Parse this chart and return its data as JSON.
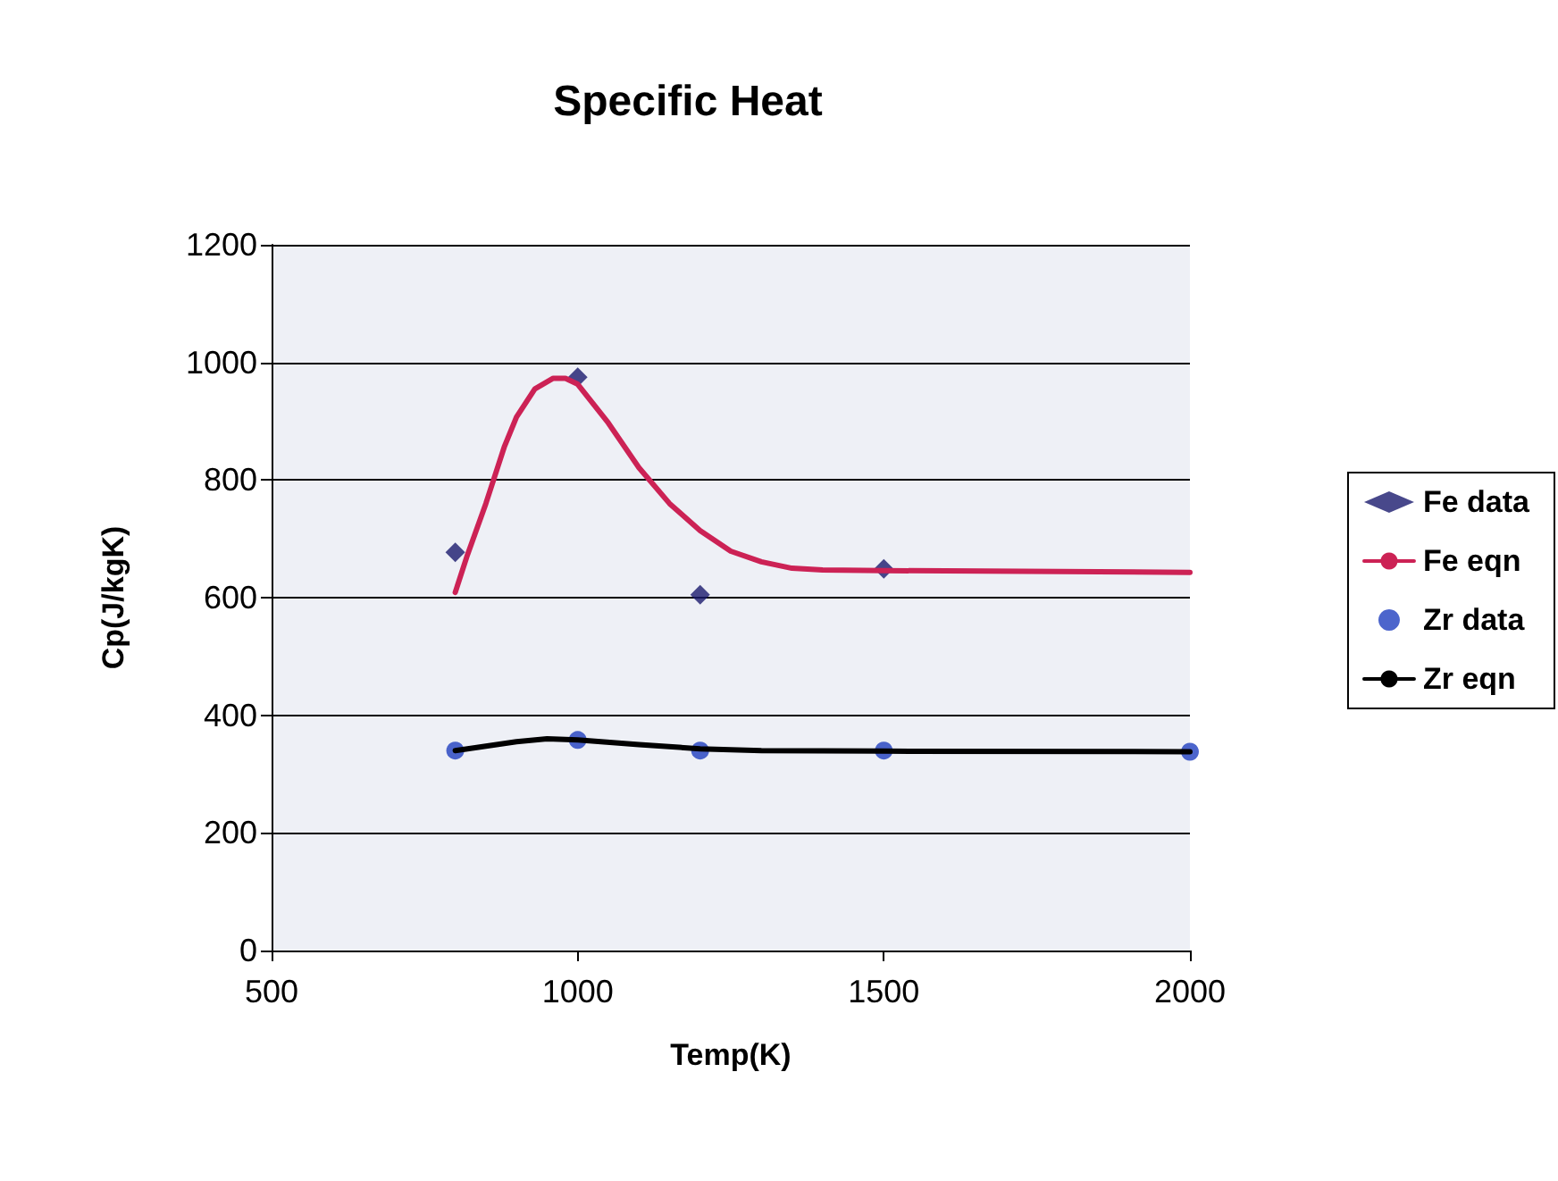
{
  "chart_data": {
    "type": "scatter",
    "title": "Specific Heat",
    "xlabel": "Temp(K)",
    "ylabel": "Cp(J/kgK)",
    "xlim": [
      500,
      2000
    ],
    "xticks": [
      500,
      1000,
      1500,
      2000
    ],
    "ylim": [
      0,
      1200
    ],
    "yticks": [
      0,
      200,
      400,
      600,
      800,
      1000,
      1200
    ],
    "grid": "y",
    "legend": "right",
    "series": [
      {
        "name": "Fe data",
        "marker": "diamond",
        "color": "#1a1a6e",
        "x": [
          800,
          1000,
          1200,
          1500
        ],
        "values": [
          677,
          975,
          605,
          649
        ]
      },
      {
        "name": "Fe eqn",
        "type": "line",
        "marker": "none",
        "color": "#cc2255",
        "x": [
          800,
          820,
          850,
          880,
          900,
          930,
          960,
          980,
          1000,
          1050,
          1100,
          1150,
          1200,
          1250,
          1300,
          1350,
          1400,
          1500,
          2000
        ],
        "values": [
          609,
          673,
          760,
          856,
          907,
          955,
          973,
          973,
          963,
          897,
          821,
          760,
          714,
          679,
          661,
          650,
          647,
          646,
          643
        ]
      },
      {
        "name": "Zr data",
        "marker": "circle",
        "color": "#1f3fbf",
        "x": [
          800,
          1000,
          1200,
          1500,
          2000
        ],
        "values": [
          340,
          358,
          340,
          340,
          338
        ]
      },
      {
        "name": "Zr eqn",
        "type": "line",
        "marker": "none",
        "color": "#000000",
        "x": [
          800,
          900,
          950,
          1000,
          1100,
          1200,
          1300,
          1500,
          2000
        ],
        "values": [
          340,
          355,
          360,
          358,
          350,
          343,
          340,
          339,
          338
        ]
      }
    ]
  }
}
